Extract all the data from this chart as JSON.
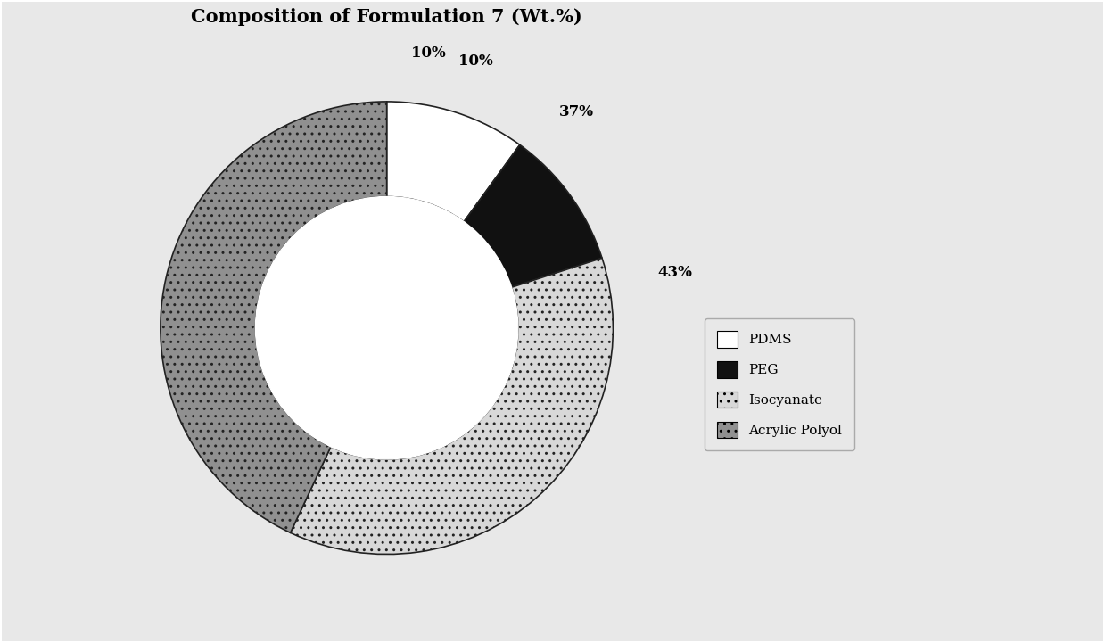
{
  "title": "Composition of Formulation 7 (Wt.%)",
  "labels": [
    "PDMS",
    "PEG",
    "Isocyanate",
    "Acrylic Polyol"
  ],
  "values": [
    10,
    10,
    37,
    43
  ],
  "colors": [
    "#ffffff",
    "#111111",
    "#c8c8c8",
    "#888888"
  ],
  "hatches": [
    "",
    "",
    "....",
    "...."
  ],
  "pct_labels": [
    "10%",
    "10%",
    "37%",
    "43%"
  ],
  "background_color": "#e8e8e8",
  "wedge_edge_color": "#222222",
  "title_fontsize": 15,
  "legend_labels": [
    "PDMS",
    "PEG",
    "Isocyanate",
    "Acrylic Polyol"
  ],
  "legend_colors": [
    "#ffffff",
    "#111111",
    "#c8c8c8",
    "#888888"
  ],
  "legend_hatches": [
    "",
    "",
    "....",
    "...."
  ]
}
